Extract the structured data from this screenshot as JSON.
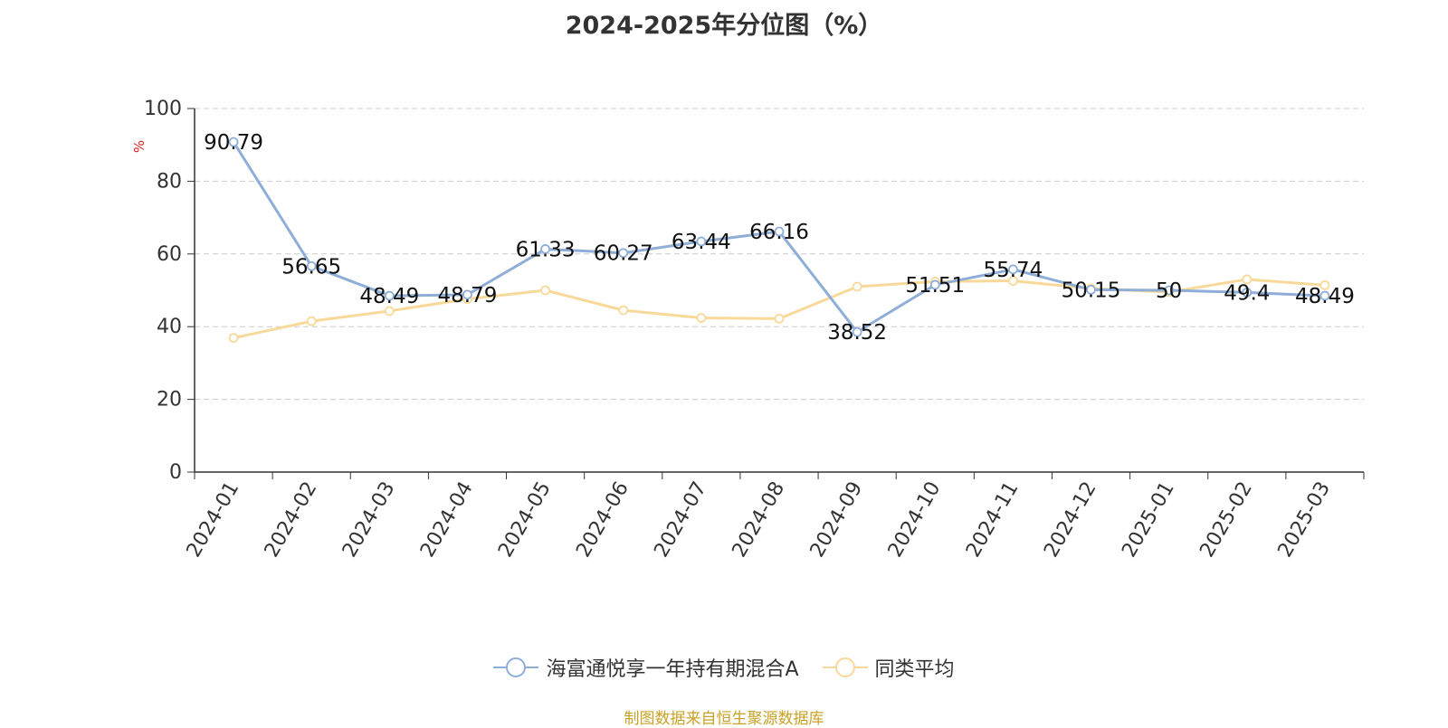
{
  "title": "2024-2025年分位图（%）",
  "source_note": "制图数据来自恒生聚源数据库",
  "colors": {
    "series_a": "#8eaed8",
    "series_b": "#f9d99a",
    "grid": "#cccccc",
    "axis": "#333333",
    "ylabel": "#e02020",
    "source": "#c9a227"
  },
  "chart_data": {
    "type": "line",
    "title": "2024-2025年分位图（%）",
    "xlabel": "",
    "ylabel": "%",
    "ylim": [
      0,
      100
    ],
    "yticks": [
      0,
      20,
      40,
      60,
      80,
      100
    ],
    "grid": true,
    "legend_position": "bottom",
    "categories": [
      "2024-01",
      "2024-02",
      "2024-03",
      "2024-04",
      "2024-05",
      "2024-06",
      "2024-07",
      "2024-08",
      "2024-09",
      "2024-10",
      "2024-11",
      "2024-12",
      "2025-01",
      "2025-02",
      "2025-03"
    ],
    "series": [
      {
        "name": "海富通悦享一年持有期混合A",
        "color": "#8eaed8",
        "values": [
          90.79,
          56.65,
          48.49,
          48.79,
          61.33,
          60.27,
          63.44,
          66.16,
          38.52,
          51.51,
          55.74,
          50.15,
          50,
          49.4,
          48.49
        ],
        "labels": [
          "90.79",
          "56.65",
          "48.49",
          "48.79",
          "61.33",
          "60.27",
          "63.44",
          "66.16",
          "38.52",
          "51.51",
          "55.74",
          "50.15",
          "50",
          "49.4",
          "48.49"
        ]
      },
      {
        "name": "同类平均",
        "color": "#f9d99a",
        "values": [
          36.9,
          41.5,
          44.3,
          47.6,
          50.0,
          44.5,
          42.4,
          42.2,
          51.0,
          52.4,
          52.6,
          50.5,
          49.5,
          53.0,
          51.4
        ]
      }
    ]
  }
}
